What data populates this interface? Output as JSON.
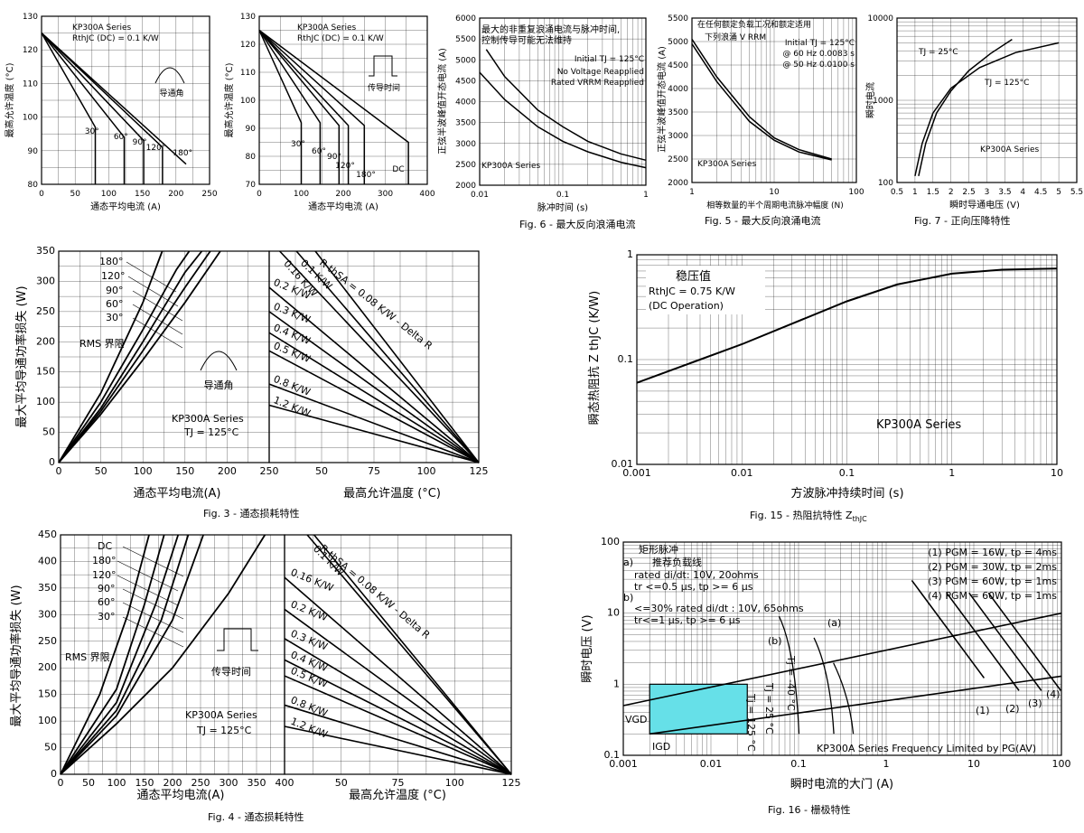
{
  "captions": {
    "c3": "Fig. 3 - 通态损耗特性",
    "c4": "Fig. 4 - 通态损耗特性",
    "c5": "Fig. 5 - 最大反向浪涌电流",
    "c6": "Fig. 6 - 最大反向浪涌电流",
    "c7": "Fig. 7 - 正向压降特性",
    "c15a": "Fig. 15 - 热阻抗特性 Z",
    "c15b": "thJC",
    "c16": "Fig. 16 - 栅极特性"
  },
  "colors": {
    "line": "#000000",
    "grid": "#000000",
    "gate_region": "#66e0e8"
  },
  "chart_data": [
    {
      "id": "f1",
      "type": "line",
      "xlabel": "通态平均电流 (A)",
      "ylabel": "最高允许温度 (°C)",
      "xlim": [
        0,
        250
      ],
      "ylim": [
        80,
        130
      ],
      "xticks": [
        "0",
        "50",
        "100",
        "150",
        "200",
        "250"
      ],
      "yticks": [
        "80",
        "90",
        "100",
        "110",
        "120",
        "130"
      ],
      "annotations": [
        "KP300A Series",
        "RthJC (DC) = 0.1 K/W",
        "导通角"
      ],
      "series": [
        {
          "name": "30°",
          "x": [
            0,
            80,
            80
          ],
          "y": [
            125,
            97,
            80
          ]
        },
        {
          "name": "60°",
          "x": [
            0,
            123,
            123
          ],
          "y": [
            125,
            94,
            80
          ]
        },
        {
          "name": "90°",
          "x": [
            0,
            152,
            152
          ],
          "y": [
            125,
            93,
            80
          ]
        },
        {
          "name": "120°",
          "x": [
            0,
            180,
            180
          ],
          "y": [
            125,
            91,
            80
          ]
        },
        {
          "name": "180°",
          "x": [
            0,
            215
          ],
          "y": [
            125,
            86
          ]
        }
      ]
    },
    {
      "id": "f2",
      "type": "line",
      "xlabel": "通态平均电流 (A)",
      "ylabel": "最高允许温度 (°C)",
      "xlim": [
        0,
        400
      ],
      "ylim": [
        70,
        130
      ],
      "xticks": [
        "0",
        "100",
        "200",
        "300",
        "400"
      ],
      "yticks": [
        "70",
        "80",
        "90",
        "100",
        "110",
        "120",
        "130"
      ],
      "annotations": [
        "KP300A Series",
        "RthJC (DC) = 0.1 K/W",
        "传导时间"
      ],
      "series": [
        {
          "name": "30°",
          "x": [
            0,
            100,
            100
          ],
          "y": [
            125,
            92,
            70
          ]
        },
        {
          "name": "60°",
          "x": [
            0,
            145,
            145
          ],
          "y": [
            125,
            92,
            70
          ]
        },
        {
          "name": "90°",
          "x": [
            0,
            190,
            190
          ],
          "y": [
            125,
            91,
            70
          ]
        },
        {
          "name": "120°",
          "x": [
            0,
            212,
            212
          ],
          "y": [
            125,
            91,
            70
          ]
        },
        {
          "name": "180°",
          "x": [
            0,
            250,
            250
          ],
          "y": [
            125,
            91,
            70
          ]
        },
        {
          "name": "DC",
          "x": [
            0,
            355,
            355
          ],
          "y": [
            125,
            85,
            70
          ]
        }
      ]
    },
    {
      "id": "f6",
      "type": "line",
      "xlabel": "脉冲时间 (s)",
      "ylabel": "正弦半波峰值开态电流 (A)",
      "xscale": "log",
      "xlim": [
        0.01,
        1
      ],
      "ylim": [
        2000,
        6000
      ],
      "xticks": [
        "0.01",
        "0.1",
        "1"
      ],
      "yticks": [
        "2000",
        "2500",
        "3000",
        "3500",
        "4000",
        "4500",
        "5000",
        "5500",
        "6000"
      ],
      "annotations": [
        "最大的非重复浪涌电流与脉冲时间,",
        "控制传导可能无法维持",
        "Initial TJ = 125°C",
        "No Voltage Reapplied",
        "Rated VRRM Reapplied",
        "KP300A Series"
      ],
      "series": [
        {
          "name": "No Voltage Reapplied",
          "x": [
            0.012,
            0.02,
            0.05,
            0.1,
            0.2,
            0.5,
            1
          ],
          "y": [
            5250,
            4600,
            3800,
            3400,
            3050,
            2750,
            2600
          ]
        },
        {
          "name": "Rated VRRM Reapplied",
          "x": [
            0.01,
            0.02,
            0.05,
            0.1,
            0.2,
            0.5,
            1
          ],
          "y": [
            4700,
            4050,
            3400,
            3050,
            2800,
            2550,
            2420
          ]
        }
      ]
    },
    {
      "id": "f5",
      "type": "line",
      "xlabel": "相等数量的半个周期电流脉冲幅度 (N)",
      "ylabel": "正弦半波峰值开态电流 (A)",
      "xscale": "log",
      "xlim": [
        1,
        100
      ],
      "ylim": [
        2000,
        5500
      ],
      "xticks": [
        "1",
        "10",
        "100"
      ],
      "yticks": [
        "2000",
        "2500",
        "3000",
        "3500",
        "4000",
        "4500",
        "5000",
        "5500"
      ],
      "annotations": [
        "在任何额定负载工况和额定适用",
        "下列浪涌 V RRM",
        "Initial TJ = 125°C",
        "@ 60 Hz 0.0083 s",
        "@ 50 Hz 0.0100 s",
        "KP300A Series"
      ],
      "series": [
        {
          "name": "@ 60 Hz 0.0083 s",
          "x": [
            1,
            2,
            5,
            10,
            20,
            50
          ],
          "y": [
            5050,
            4250,
            3400,
            2950,
            2700,
            2500
          ]
        },
        {
          "name": "@ 50 Hz 0.0100 s",
          "x": [
            1,
            2,
            5,
            10,
            20,
            50
          ],
          "y": [
            4950,
            4150,
            3300,
            2900,
            2650,
            2480
          ]
        }
      ]
    },
    {
      "id": "f7",
      "type": "line",
      "xlabel": "瞬时导通电压 (V)",
      "ylabel": "瞬时电流",
      "yscale": "log",
      "xlim": [
        0.5,
        5.5
      ],
      "ylim": [
        100,
        10000
      ],
      "xticks": [
        "0.5",
        "1",
        "1.5",
        "2",
        "2.5",
        "3",
        "3.5",
        "4",
        "4.5",
        "5",
        "5.5"
      ],
      "yticks": [
        "100",
        "1000",
        "10000"
      ],
      "annotations": [
        "KP300A Series"
      ],
      "series": [
        {
          "name": "TJ = 25°C",
          "x": [
            1.1,
            1.3,
            1.6,
            2,
            2.5,
            3.1,
            3.7
          ],
          "y": [
            120,
            300,
            700,
            1300,
            2300,
            3700,
            5500
          ]
        },
        {
          "name": "TJ = 125°C",
          "x": [
            1,
            1.2,
            1.5,
            2,
            2.8,
            3.8,
            5
          ],
          "y": [
            120,
            300,
            700,
            1400,
            2500,
            3800,
            5000
          ]
        }
      ]
    },
    {
      "id": "f3",
      "type": "line",
      "xlabel": "通态平均电流(A)",
      "xlabel2": "最高允许温度 (°C)",
      "ylabel": "最大平均导通功率损失 (W)",
      "ylim": [
        0,
        350
      ],
      "xlim": [
        0,
        250
      ],
      "x2lim": [
        25,
        125
      ],
      "xticks": [
        "0",
        "50",
        "100",
        "150",
        "200",
        "250"
      ],
      "x2ticks": [
        "25",
        "50",
        "75",
        "100",
        "125"
      ],
      "yticks": [
        "0",
        "50",
        "100",
        "150",
        "200",
        "250",
        "300",
        "350"
      ],
      "annotations": [
        "RMS 界限",
        "导通角",
        "KP300A Series",
        "TJ = 125°C"
      ],
      "series": [
        {
          "name": "180°",
          "x": [
            0,
            50,
            100,
            150,
            192
          ],
          "y": [
            0,
            80,
            170,
            265,
            350
          ]
        },
        {
          "name": "120°",
          "x": [
            0,
            50,
            100,
            150,
            180
          ],
          "y": [
            0,
            85,
            185,
            290,
            350
          ]
        },
        {
          "name": "90°",
          "x": [
            0,
            50,
            100,
            150,
            170
          ],
          "y": [
            0,
            90,
            200,
            315,
            350
          ]
        },
        {
          "name": "60°",
          "x": [
            0,
            50,
            100,
            140,
            155
          ],
          "y": [
            0,
            100,
            220,
            320,
            350
          ]
        },
        {
          "name": "30°",
          "x": [
            0,
            50,
            100,
            123
          ],
          "y": [
            0,
            115,
            265,
            350
          ]
        }
      ],
      "right_lines": [
        "R thSA = 0.08 K/W - Delta R",
        "0.1 K/W",
        "0.16 K/W",
        "0.2 K/W",
        "0.3 K/W",
        "0.4 K/W",
        "0.5 K/W",
        "0.8 K/W",
        "1.2 K/W"
      ],
      "right_start_y": [
        350,
        350,
        350,
        290,
        250,
        215,
        185,
        130,
        95
      ],
      "right_start_x": [
        47,
        38,
        30,
        25,
        25,
        25,
        25,
        25,
        25
      ]
    },
    {
      "id": "f4",
      "type": "line",
      "xlabel": "通态平均电流(A)",
      "xlabel2": "最高允许温度 (°C)",
      "ylabel": "最大平均导通功率损失 (W)",
      "ylim": [
        0,
        450
      ],
      "xlim": [
        0,
        400
      ],
      "x2lim": [
        25,
        125
      ],
      "xticks": [
        "0",
        "50",
        "100",
        "150",
        "200",
        "250",
        "300",
        "350",
        "400"
      ],
      "x2ticks": [
        "50",
        "75",
        "100",
        "125"
      ],
      "yticks": [
        "0",
        "50",
        "100",
        "150",
        "200",
        "250",
        "300",
        "350",
        "400",
        "450"
      ],
      "annotations": [
        "RMS 界限",
        "传导时间",
        "KP300A Series",
        "TJ = 125°C"
      ],
      "series": [
        {
          "name": "DC",
          "x": [
            0,
            100,
            200,
            300,
            365
          ],
          "y": [
            0,
            95,
            200,
            340,
            450
          ]
        },
        {
          "name": "180°",
          "x": [
            0,
            100,
            200,
            255
          ],
          "y": [
            0,
            110,
            290,
            450
          ]
        },
        {
          "name": "120°",
          "x": [
            0,
            100,
            180,
            228
          ],
          "y": [
            0,
            120,
            290,
            450
          ]
        },
        {
          "name": "90°",
          "x": [
            0,
            100,
            170,
            210
          ],
          "y": [
            0,
            135,
            320,
            450
          ]
        },
        {
          "name": "60°",
          "x": [
            0,
            100,
            150,
            185
          ],
          "y": [
            0,
            160,
            320,
            450
          ]
        },
        {
          "name": "30°",
          "x": [
            0,
            70,
            120,
            158
          ],
          "y": [
            0,
            150,
            300,
            450
          ]
        }
      ],
      "right_lines": [
        "R thSA = 0.08 K/W - Delta R",
        "0.1 K/W",
        "0.16 K/W",
        "0.2 K/W",
        "0.3 K/W",
        "0.4 K/W",
        "0.5 K/W",
        "0.8 K/W",
        "1.2 K/W"
      ],
      "right_start_y": [
        450,
        450,
        370,
        310,
        255,
        215,
        185,
        130,
        90
      ],
      "right_start_x": [
        38,
        35,
        25,
        25,
        25,
        25,
        25,
        25,
        25
      ]
    },
    {
      "id": "f15",
      "type": "line",
      "xlabel": "方波脉冲持续时间 (s)",
      "ylabel": "瞬态热阻抗 Z thJC (K/W)",
      "xscale": "log",
      "yscale": "log",
      "xlim": [
        0.001,
        10
      ],
      "ylim": [
        0.01,
        1
      ],
      "xticks": [
        "0.001",
        "0.01",
        "0.1",
        "1",
        "10"
      ],
      "yticks": [
        "0.01",
        "0.1",
        "1"
      ],
      "annotations": [
        "稳压值",
        "RthJC = 0.75 K/W",
        "(DC Operation)",
        "KP300A Series"
      ],
      "series": [
        {
          "name": "ZthJC",
          "x": [
            0.001,
            0.003,
            0.01,
            0.03,
            0.1,
            0.3,
            1,
            3,
            10
          ],
          "y": [
            0.06,
            0.09,
            0.14,
            0.22,
            0.36,
            0.52,
            0.66,
            0.72,
            0.74
          ]
        }
      ]
    },
    {
      "id": "f16",
      "type": "line",
      "xlabel": "瞬时电流的大门 (A)",
      "ylabel": "瞬时电压 (V)",
      "xscale": "log",
      "yscale": "log",
      "xlim": [
        0.001,
        100
      ],
      "ylim": [
        0.1,
        100
      ],
      "xticks": [
        "0.001",
        "0.01",
        "0.1",
        "1",
        "10",
        "100"
      ],
      "yticks": [
        "0.1",
        "1",
        "10",
        "100"
      ],
      "annotations": [
        "矩形脉冲",
        "a)",
        "推荐负载线",
        "rated di/dt: 10V, 20ohms",
        "tr <=0.5 μs, tp >= 6 μs",
        "b)",
        "<=30% rated di/dt : 10V, 65ohms",
        "tr<=1 μs, tp >= 6 μs",
        "(1) PGM = 16W,  tp = 4ms",
        "(2) PGM = 30W,  tp = 2ms",
        "(3) PGM = 60W,  tp = 1ms",
        "(4) PGM = 60W,  tp = 1ms",
        "VGD",
        "IGD",
        "KP300A Series Frequency Limited by PG(AV)",
        "(a)",
        "(b)",
        "Tj = -40 °C",
        "Tj = 25 °C",
        "Tj = 125 °C",
        "(1)",
        "(2)",
        "(3)",
        "(4)"
      ],
      "series": [
        {
          "name": "(a)",
          "x": [
            0.001,
            100
          ],
          "y": [
            0.5,
            10
          ]
        },
        {
          "name": "(b)",
          "x": [
            0.002,
            100
          ],
          "y": [
            0.2,
            1.3
          ]
        }
      ]
    }
  ]
}
